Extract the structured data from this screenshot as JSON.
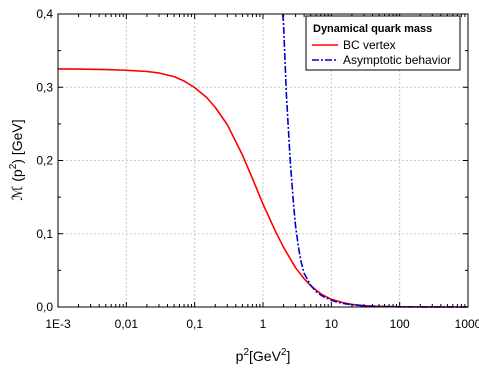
{
  "chart_data": {
    "type": "line",
    "title": "",
    "xlabel": {
      "base": "p",
      "sup1": "2",
      "mid": "[GeV",
      "sup2": "2",
      "end": "]"
    },
    "ylabel": {
      "base": "ℳ (p",
      "sup": "2",
      "end": ") [GeV]"
    },
    "x_scale": "log",
    "xlim": [
      0.001,
      1000
    ],
    "ylim": [
      0,
      0.4
    ],
    "x_ticks": [
      {
        "value": 0.001,
        "label": "1E-3"
      },
      {
        "value": 0.01,
        "label": "0,01"
      },
      {
        "value": 0.1,
        "label": "0,1"
      },
      {
        "value": 1,
        "label": "1"
      },
      {
        "value": 10,
        "label": "10"
      },
      {
        "value": 100,
        "label": "100"
      },
      {
        "value": 1000,
        "label": "1000"
      }
    ],
    "y_ticks": [
      {
        "value": 0.0,
        "label": "0,0"
      },
      {
        "value": 0.1,
        "label": "0,1"
      },
      {
        "value": 0.2,
        "label": "0,2"
      },
      {
        "value": 0.3,
        "label": "0,3"
      },
      {
        "value": 0.4,
        "label": "0,4"
      }
    ],
    "grid": true,
    "legend": {
      "title": "Dynamical quark mass",
      "placement": "top-right"
    },
    "series": [
      {
        "name": "BC vertex",
        "color": "#ff0000",
        "style": "solid",
        "points": [
          [
            0.001,
            0.325
          ],
          [
            0.002,
            0.3248
          ],
          [
            0.005,
            0.3242
          ],
          [
            0.01,
            0.3232
          ],
          [
            0.02,
            0.3215
          ],
          [
            0.03,
            0.3195
          ],
          [
            0.05,
            0.3145
          ],
          [
            0.07,
            0.3085
          ],
          [
            0.1,
            0.2995
          ],
          [
            0.15,
            0.286
          ],
          [
            0.2,
            0.2725
          ],
          [
            0.3,
            0.249
          ],
          [
            0.5,
            0.2075
          ],
          [
            0.7,
            0.1755
          ],
          [
            1.0,
            0.1405
          ],
          [
            1.5,
            0.1045
          ],
          [
            2.0,
            0.0815
          ],
          [
            3.0,
            0.0535
          ],
          [
            4.0,
            0.0385
          ],
          [
            5.0,
            0.029
          ],
          [
            7.0,
            0.018
          ],
          [
            10.0,
            0.0105
          ],
          [
            15.0,
            0.0058
          ],
          [
            20.0,
            0.0035
          ],
          [
            30.0,
            0.0018
          ],
          [
            50.0,
            0.0008
          ],
          [
            100.0,
            0.0002
          ],
          [
            200.0,
            0.0001
          ],
          [
            1000.0,
            0.0
          ]
        ]
      },
      {
        "name": "Asymptotic behavior",
        "color": "#0000cc",
        "style": "dash-dot",
        "points": [
          [
            1.95,
            0.4
          ],
          [
            2.0,
            0.385
          ],
          [
            2.2,
            0.29
          ],
          [
            2.5,
            0.2
          ],
          [
            2.8,
            0.14
          ],
          [
            3.0,
            0.11
          ],
          [
            3.3,
            0.082
          ],
          [
            3.6,
            0.062
          ],
          [
            4.0,
            0.046
          ],
          [
            5.0,
            0.0295
          ],
          [
            6.0,
            0.021
          ],
          [
            7.0,
            0.0165
          ],
          [
            8.0,
            0.0133
          ],
          [
            10.0,
            0.0093
          ],
          [
            12.0,
            0.0069
          ],
          [
            15.0,
            0.0049
          ],
          [
            20.0,
            0.0031
          ],
          [
            30.0,
            0.0016
          ],
          [
            50.0,
            0.0007
          ],
          [
            100.0,
            0.0002
          ],
          [
            1000.0,
            0.0
          ]
        ]
      }
    ]
  }
}
